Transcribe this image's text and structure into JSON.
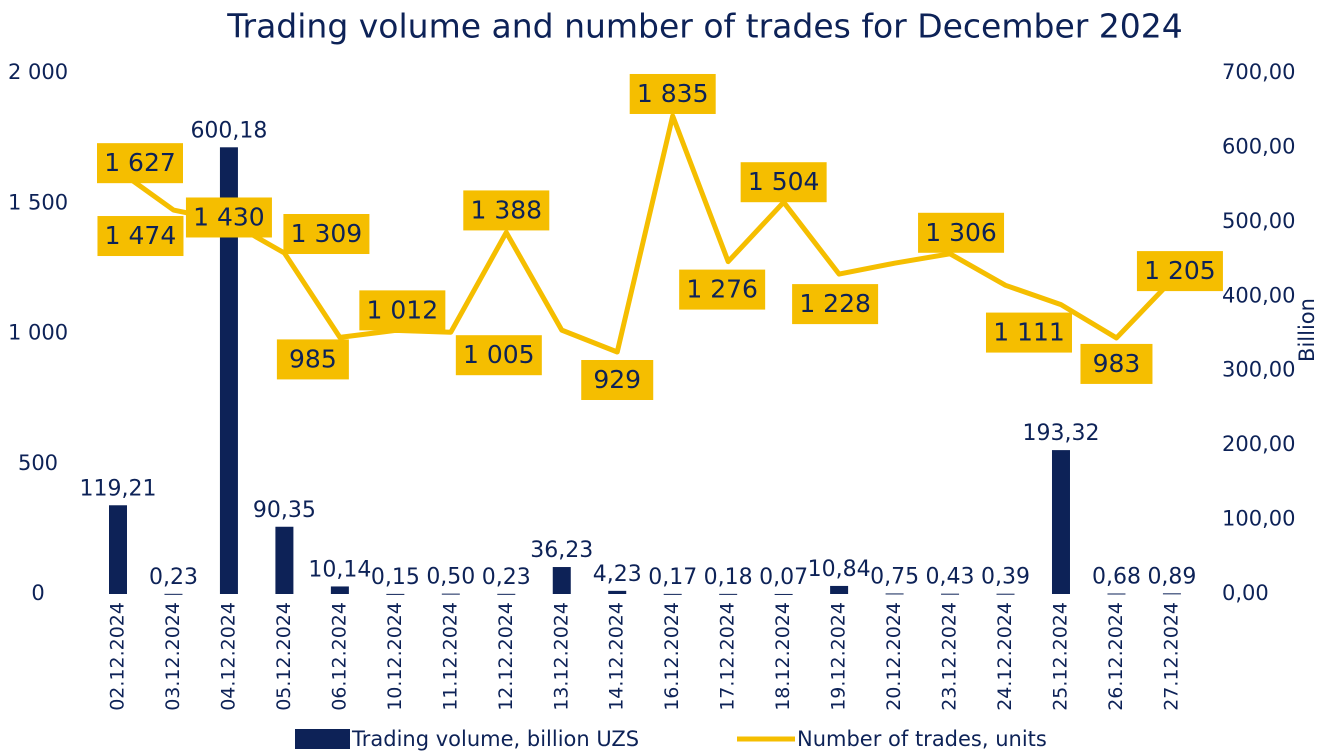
{
  "chart_data": {
    "type": "bar-line",
    "title": "Trading volume and number of trades for December 2024",
    "y2_label": "Billion",
    "categories": [
      "02.12.2024",
      "03.12.2024",
      "04.12.2024",
      "05.12.2024",
      "06.12.2024",
      "10.12.2024",
      "11.12.2024",
      "12.12.2024",
      "13.12.2024",
      "14.12.2024",
      "16.12.2024",
      "17.12.2024",
      "18.12.2024",
      "19.12.2024",
      "20.12.2024",
      "23.12.2024",
      "24.12.2024",
      "25.12.2024",
      "26.12.2024",
      "27.12.2024"
    ],
    "series": [
      {
        "name": "Trading volume, billion UZS",
        "type": "bar",
        "axis": "y2",
        "color": "#0d2257",
        "values": [
          119.21,
          0.23,
          600.18,
          90.35,
          10.14,
          0.15,
          0.5,
          0.23,
          36.23,
          4.23,
          0.17,
          0.18,
          0.07,
          10.84,
          0.75,
          0.43,
          0.39,
          193.32,
          0.68,
          0.89
        ],
        "value_labels": [
          "119,21",
          "0,23",
          "600,18",
          "90,35",
          "10,14",
          "0,15",
          "0,50",
          "0,23",
          "36,23",
          "4,23",
          "0,17",
          "0,18",
          "0,07",
          "10,84",
          "0,75",
          "0,43",
          "0,39",
          "193,32",
          "0,68",
          "0,89"
        ]
      },
      {
        "name": "Number of trades, units",
        "type": "line",
        "axis": "y",
        "color": "#f5be00",
        "values": [
          1627,
          1474,
          1430,
          1309,
          985,
          1012,
          1005,
          1388,
          1013,
          929,
          1835,
          1276,
          1504,
          1228,
          1270,
          1306,
          1185,
          1111,
          983,
          1205
        ],
        "value_labels": [
          "1 627",
          "1 474",
          "1 430",
          "1 309",
          "985",
          "1 012",
          "1 005",
          "1 388",
          null,
          "929",
          "1 835",
          "1 276",
          "1 504",
          "1 228",
          null,
          "1 306",
          null,
          "1 111",
          "983",
          "1 205"
        ]
      }
    ],
    "ylim": [
      0,
      2000
    ],
    "yticks": [
      0,
      500,
      {
        "value": 1000,
        "label": "1 000"
      },
      {
        "value": 1500,
        "label": "1 500"
      },
      {
        "value": 2000,
        "label": "2 000"
      }
    ],
    "y2lim": [
      0,
      700
    ],
    "y2ticks": [
      {
        "value": 0,
        "label": "0,00"
      },
      {
        "value": 100,
        "label": "100,00"
      },
      {
        "value": 200,
        "label": "200,00"
      },
      {
        "value": 300,
        "label": "300,00"
      },
      {
        "value": 400,
        "label": "400,00"
      },
      {
        "value": 500,
        "label": "500,00"
      },
      {
        "value": 600,
        "label": "600,00"
      },
      {
        "value": 700,
        "label": "700,00"
      }
    ]
  }
}
